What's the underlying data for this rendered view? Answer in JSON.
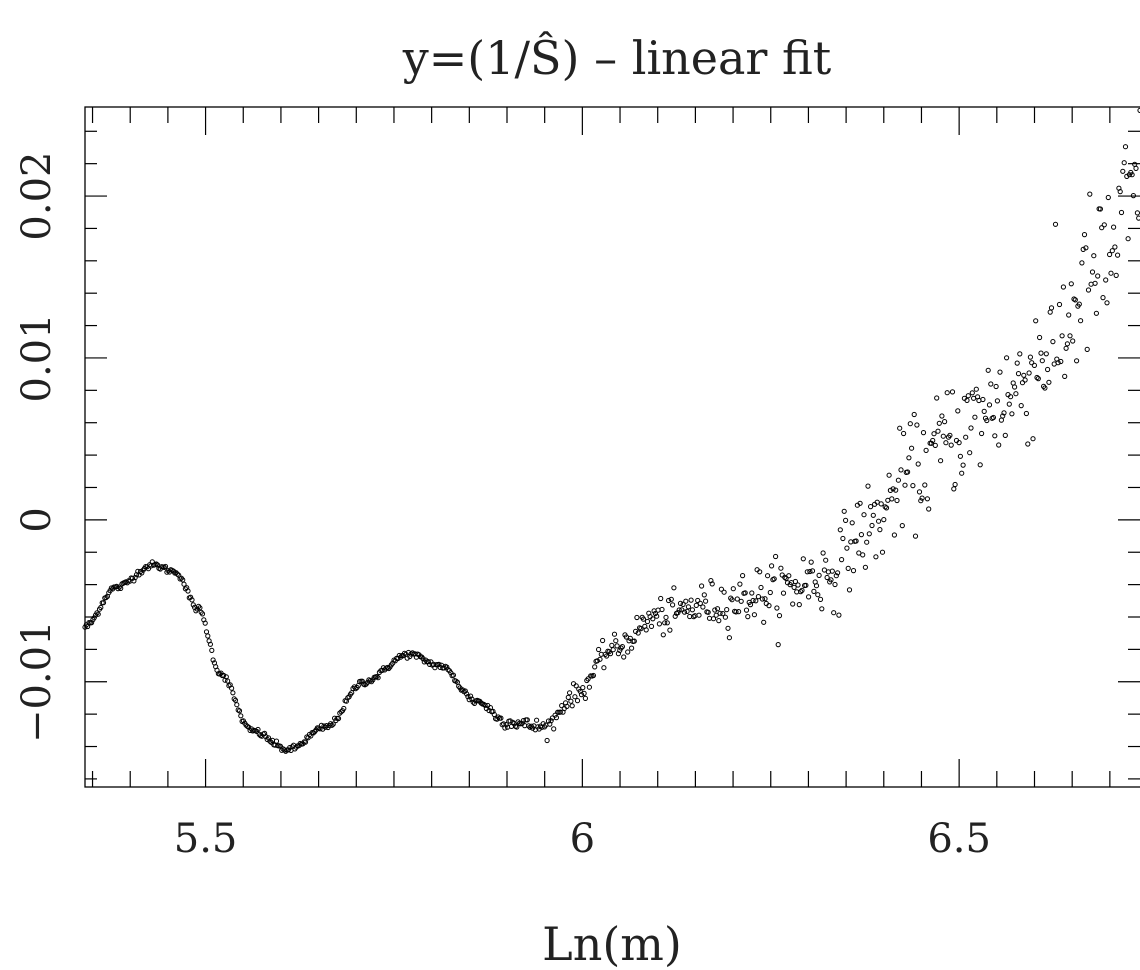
{
  "chart_data": {
    "type": "scatter",
    "title": "y=(1/Ŝ)  –  linear fit",
    "xlabel": "Ln(m)",
    "ylabel": "",
    "xlim": [
      5.34,
      6.74
    ],
    "ylim": [
      -0.0165,
      0.0255
    ],
    "x_ticks": [
      5.5,
      6,
      6.5
    ],
    "x_tick_labels": [
      "5.5",
      "6",
      "6.5"
    ],
    "y_ticks": [
      -0.01,
      0,
      0.01,
      0.02
    ],
    "y_tick_labels": [
      "−0.01",
      "0",
      "0.01",
      "0.02"
    ],
    "x_minor_step": 0.05,
    "y_minor_step": 0.002,
    "grid": false,
    "legend": "none",
    "marker": "open-circle",
    "color": "#000000",
    "n_points": 800,
    "trend": {
      "description": "smooth oscillation for x < 6 then noisy rising scatter",
      "keypoints": [
        [
          5.34,
          -0.0066
        ],
        [
          5.38,
          -0.0042
        ],
        [
          5.43,
          -0.0028
        ],
        [
          5.46,
          -0.0032
        ],
        [
          5.49,
          -0.0055
        ],
        [
          5.52,
          -0.0095
        ],
        [
          5.56,
          -0.013
        ],
        [
          5.61,
          -0.0142
        ],
        [
          5.66,
          -0.0128
        ],
        [
          5.71,
          -0.01
        ],
        [
          5.77,
          -0.0083
        ],
        [
          5.81,
          -0.009
        ],
        [
          5.86,
          -0.0112
        ],
        [
          5.9,
          -0.0125
        ],
        [
          5.95,
          -0.0128
        ],
        [
          5.99,
          -0.0108
        ],
        [
          6.04,
          -0.008
        ],
        [
          6.1,
          -0.006
        ],
        [
          6.17,
          -0.0052
        ],
        [
          6.25,
          -0.0045
        ],
        [
          6.32,
          -0.0035
        ],
        [
          6.38,
          -0.0005
        ],
        [
          6.44,
          0.003
        ],
        [
          6.5,
          0.0055
        ],
        [
          6.56,
          0.0075
        ],
        [
          6.62,
          0.0105
        ],
        [
          6.68,
          0.015
        ],
        [
          6.74,
          0.02
        ]
      ],
      "noise_sd_start": 0.0001,
      "noise_sd_end": 0.0028,
      "noise_onset_x": 5.8
    }
  }
}
